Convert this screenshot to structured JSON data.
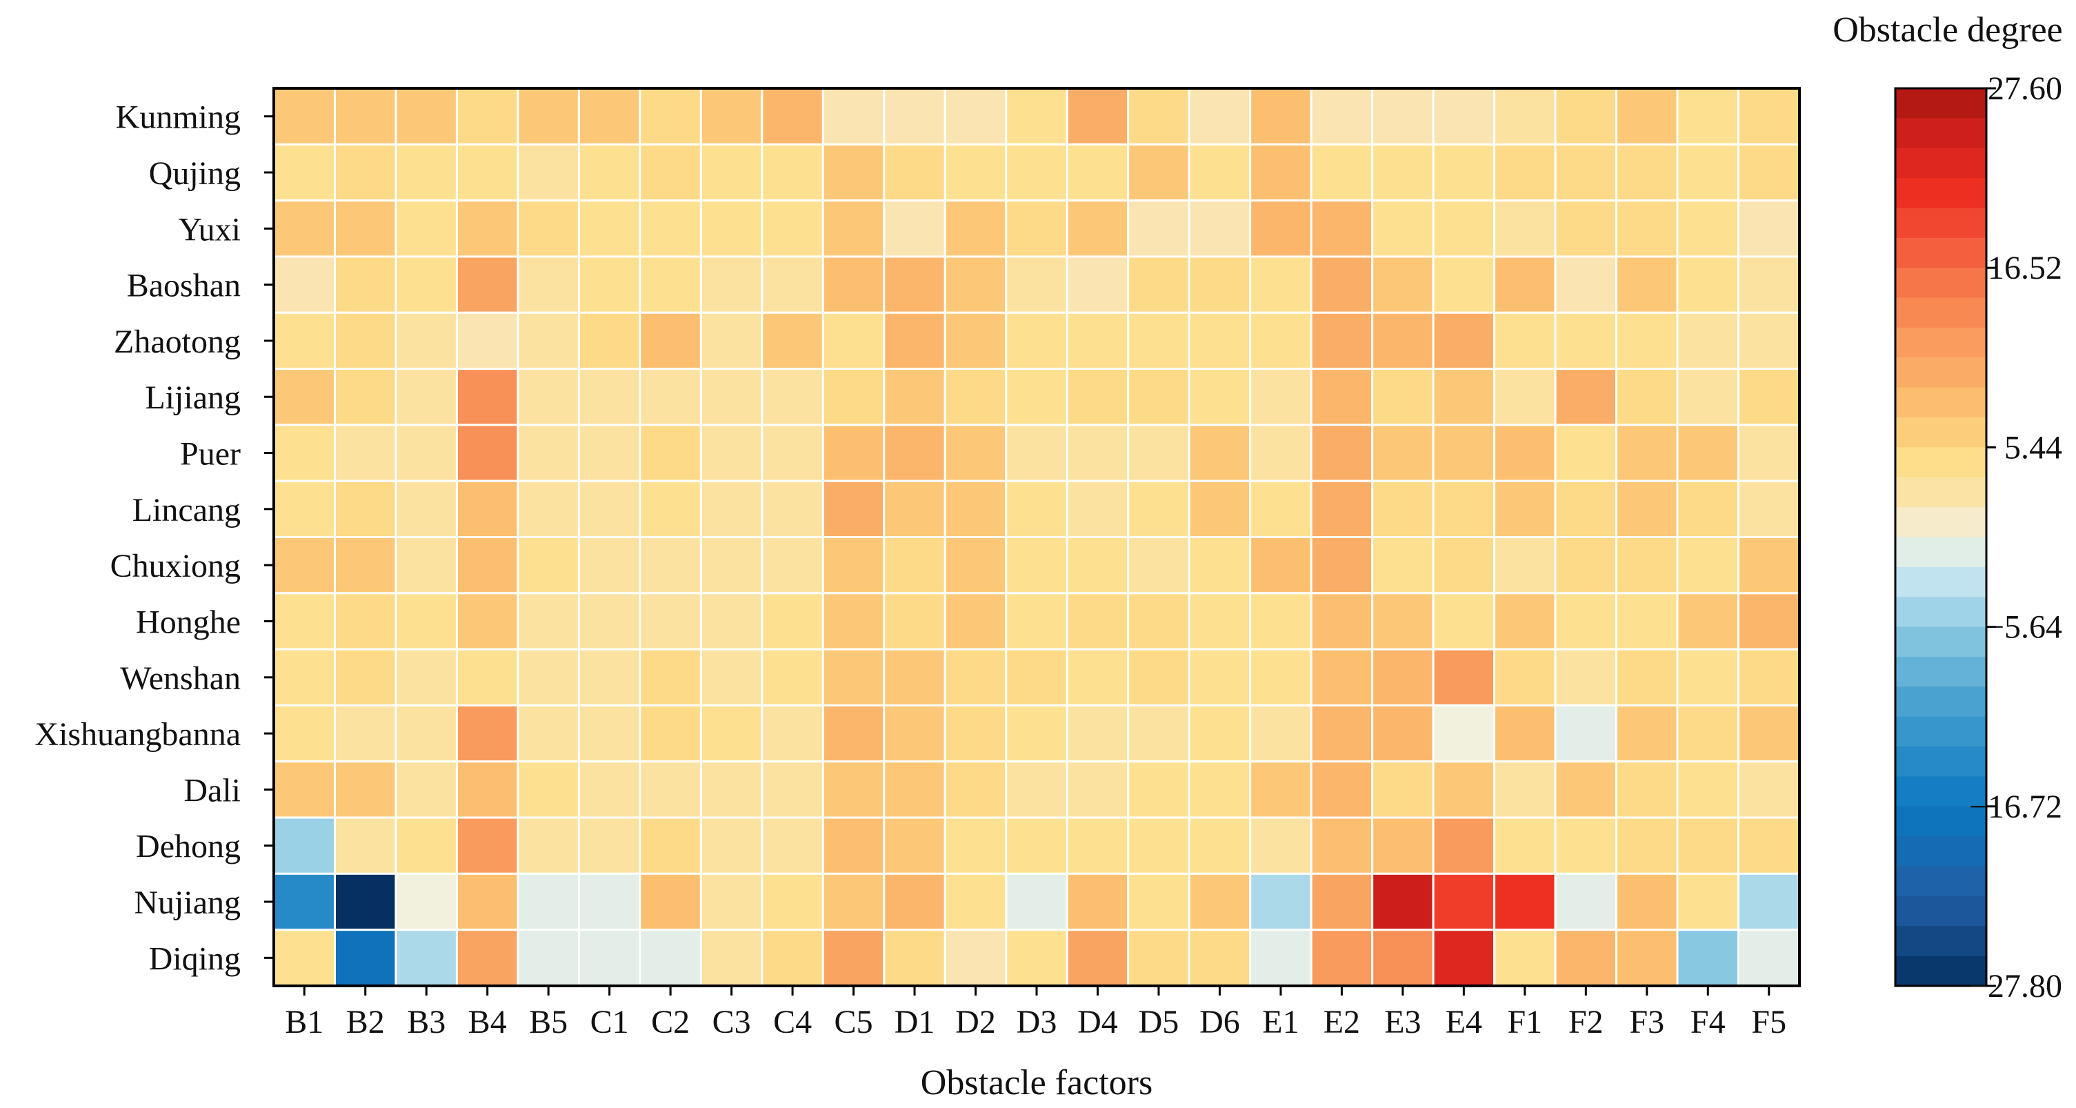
{
  "chart_data": {
    "type": "heatmap",
    "title": "",
    "xlabel": "Obstacle factors",
    "ylabel": "",
    "colorbar_label": "Obstacle degree",
    "x_categories": [
      "B1",
      "B2",
      "B3",
      "B4",
      "B5",
      "C1",
      "C2",
      "C3",
      "C4",
      "C5",
      "D1",
      "D2",
      "D3",
      "D4",
      "D5",
      "D6",
      "E1",
      "E2",
      "E3",
      "E4",
      "F1",
      "F2",
      "F3",
      "F4",
      "F5"
    ],
    "y_categories": [
      "Kunming",
      "Qujing",
      "Yuxi",
      "Baoshan",
      "Zhaotong",
      "Lijiang",
      "Puer",
      "Lincang",
      "Chuxiong",
      "Honghe",
      "Wenshan",
      "Xishuangbanna",
      "Dali",
      "Dehong",
      "Nujiang",
      "Diqing"
    ],
    "colorbar_range": [
      -27.8,
      27.6
    ],
    "colorbar_ticks": [
      27.6,
      16.52,
      5.44,
      -5.64,
      -16.72,
      -27.8
    ],
    "colorbar_tick_labels": [
      "27.60",
      "16.52",
      "5.44",
      "−5.64",
      "−16.72",
      "−27.80"
    ],
    "colormap": "RdYlBu_r",
    "values": [
      [
        7,
        7,
        7,
        5,
        7,
        7,
        5,
        7,
        9,
        2,
        2,
        2,
        4,
        10,
        5,
        2,
        8,
        2,
        2,
        2,
        3,
        5,
        7,
        4,
        5
      ],
      [
        4,
        5,
        4,
        4,
        3,
        4,
        5,
        4,
        4,
        7,
        5,
        4,
        4,
        4,
        7,
        4,
        8,
        4,
        4,
        4,
        5,
        5,
        5,
        4,
        5
      ],
      [
        7,
        7,
        4,
        7,
        5,
        4,
        4,
        4,
        4,
        7,
        2,
        7,
        5,
        7,
        2,
        2,
        9,
        9,
        4,
        4,
        3,
        5,
        5,
        4,
        2
      ],
      [
        2,
        5,
        4,
        11,
        3,
        4,
        4,
        3,
        3,
        8,
        9,
        7,
        3,
        2,
        5,
        5,
        4,
        10,
        7,
        4,
        8,
        2,
        7,
        4,
        3
      ],
      [
        4,
        5,
        3,
        2,
        3,
        5,
        8,
        3,
        7,
        4,
        9,
        7,
        4,
        4,
        4,
        4,
        4,
        10,
        9,
        10,
        4,
        4,
        4,
        3,
        3
      ],
      [
        7,
        5,
        3,
        13,
        3,
        3,
        3,
        3,
        3,
        5,
        7,
        5,
        4,
        5,
        5,
        4,
        3,
        9,
        5,
        7,
        3,
        10,
        5,
        3,
        5
      ],
      [
        4,
        3,
        3,
        13,
        3,
        3,
        5,
        3,
        3,
        8,
        9,
        7,
        3,
        3,
        3,
        7,
        3,
        10,
        7,
        7,
        8,
        4,
        7,
        7,
        3
      ],
      [
        4,
        5,
        3,
        8,
        3,
        3,
        4,
        3,
        3,
        10,
        7,
        7,
        4,
        3,
        4,
        7,
        4,
        10,
        5,
        5,
        7,
        5,
        7,
        5,
        3
      ],
      [
        7,
        7,
        3,
        8,
        4,
        3,
        3,
        3,
        3,
        7,
        5,
        7,
        4,
        4,
        3,
        4,
        8,
        10,
        4,
        5,
        3,
        5,
        5,
        4,
        7
      ],
      [
        4,
        5,
        4,
        7,
        3,
        3,
        3,
        3,
        4,
        7,
        5,
        7,
        4,
        5,
        5,
        4,
        4,
        8,
        7,
        4,
        7,
        4,
        4,
        7,
        9
      ],
      [
        4,
        5,
        3,
        4,
        3,
        3,
        5,
        3,
        4,
        7,
        7,
        5,
        5,
        4,
        5,
        4,
        4,
        8,
        9,
        12,
        5,
        3,
        5,
        4,
        5
      ],
      [
        4,
        3,
        3,
        12,
        3,
        3,
        5,
        4,
        3,
        9,
        7,
        5,
        4,
        3,
        3,
        4,
        3,
        9,
        9,
        0,
        8,
        -1,
        7,
        5,
        7
      ],
      [
        7,
        7,
        3,
        8,
        4,
        3,
        3,
        3,
        3,
        7,
        7,
        5,
        3,
        3,
        4,
        4,
        7,
        9,
        5,
        7,
        3,
        7,
        5,
        4,
        3
      ],
      [
        -5,
        3,
        4,
        12,
        3,
        3,
        5,
        3,
        3,
        8,
        7,
        4,
        4,
        4,
        4,
        4,
        3,
        8,
        8,
        12,
        4,
        4,
        5,
        5,
        5
      ],
      [
        -14,
        -28,
        0,
        8,
        -1,
        -1,
        8,
        3,
        4,
        7,
        9,
        4,
        -1,
        8,
        4,
        7,
        -4,
        11,
        25,
        20,
        21,
        -1,
        8,
        4,
        -4
      ],
      [
        4,
        -18,
        -4,
        11,
        -1,
        -1,
        -1,
        3,
        5,
        11,
        5,
        2,
        4,
        11,
        5,
        5,
        -1,
        12,
        13,
        23,
        4,
        9,
        8,
        -6,
        -1
      ]
    ]
  }
}
